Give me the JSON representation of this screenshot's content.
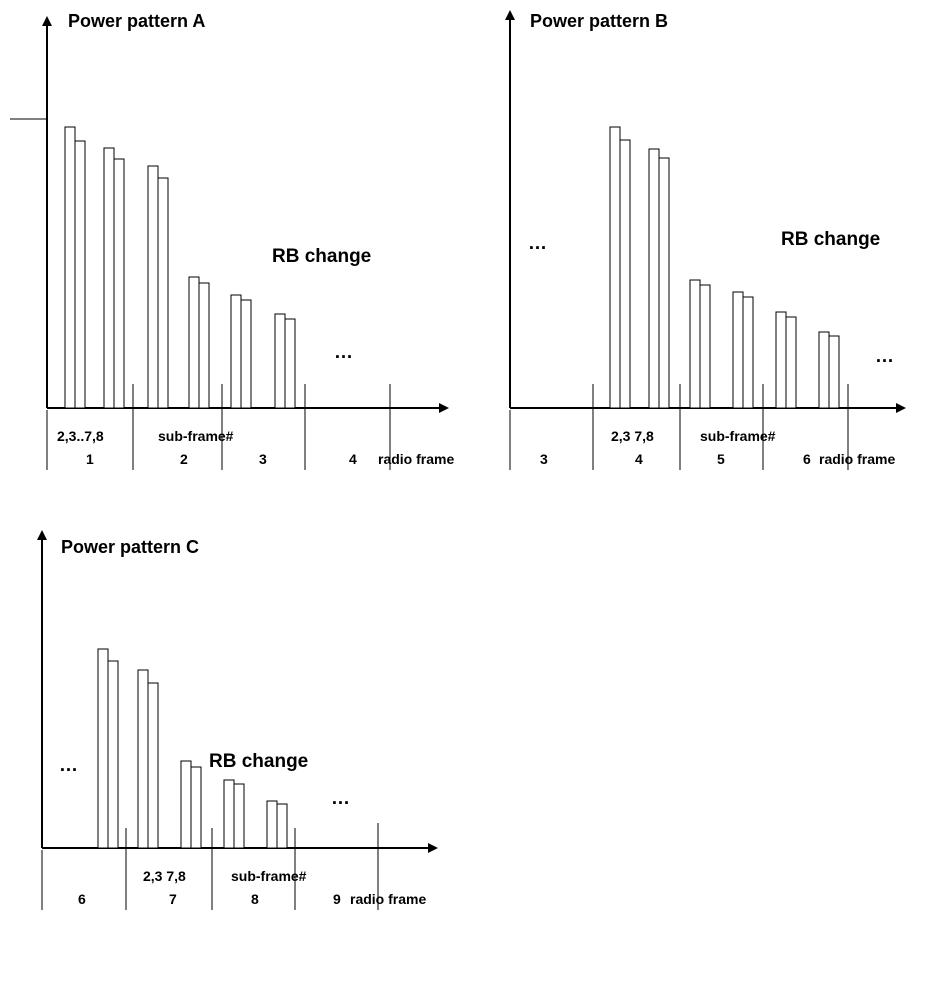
{
  "panels": [
    {
      "id": "A",
      "title": "Power pattern A",
      "annotation": "RB change",
      "ellipsis": "…",
      "subframe_label": "2,3..7,8",
      "subframe_axis_label": "sub-frame#",
      "radio_frame_label": "radio frame",
      "frame_numbers": [
        "1",
        "2",
        "3",
        "4"
      ]
    },
    {
      "id": "B",
      "title": "Power pattern B",
      "annotation": "RB change",
      "ellipsis_left": "…",
      "ellipsis": "…",
      "subframe_label": "2,3 7,8",
      "subframe_axis_label": "sub-frame#",
      "radio_frame_label": "radio frame",
      "frame_numbers": [
        "3",
        "4",
        "5",
        "6"
      ]
    },
    {
      "id": "C",
      "title": "Power pattern C",
      "annotation": "RB change",
      "ellipsis_left": "…",
      "ellipsis": "…",
      "subframe_label": "2,3 7,8",
      "subframe_axis_label": "sub-frame#",
      "radio_frame_label": "radio frame",
      "frame_numbers": [
        "6",
        "7",
        "8",
        "9"
      ]
    }
  ]
}
